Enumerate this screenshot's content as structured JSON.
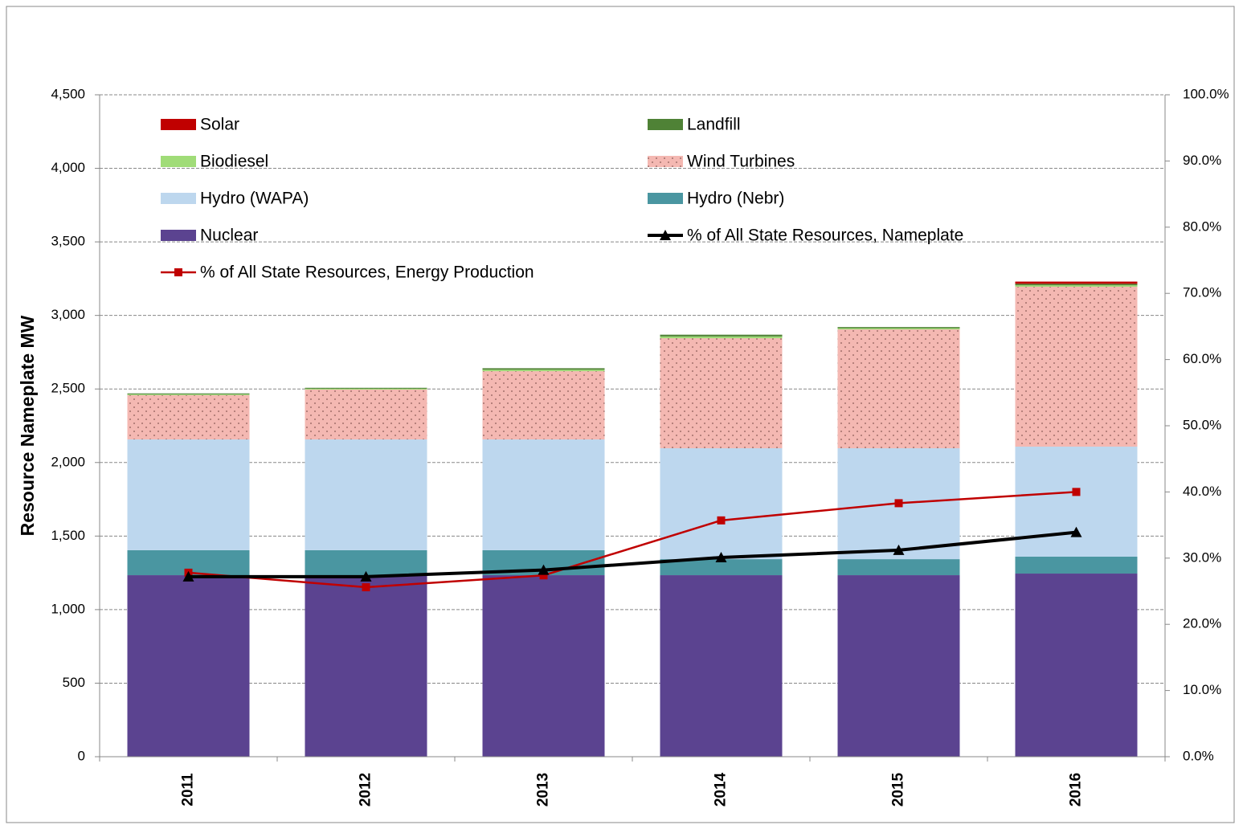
{
  "chart_data": {
    "type": "bar",
    "ylabel": "Resource Nameplate MW",
    "categories": [
      "2011",
      "2012",
      "2013",
      "2014",
      "2015",
      "2016"
    ],
    "series": [
      {
        "name": "Nuclear",
        "color": "#5b4390",
        "values": [
          1234,
          1234,
          1234,
          1234,
          1234,
          1245
        ]
      },
      {
        "name": "Hydro (Nebr)",
        "color": "#4a96a1",
        "values": [
          170,
          170,
          170,
          109,
          109,
          115
        ]
      },
      {
        "name": "Hydro (WAPA)",
        "color": "#bdd7ee",
        "values": [
          753,
          753,
          753,
          754,
          754,
          748
        ]
      },
      {
        "name": "Wind Turbines",
        "color": "#f4b8b2",
        "pattern": "dots",
        "values": [
          301,
          339,
          464,
          748,
          808,
          1087
        ]
      },
      {
        "name": "Biodiesel",
        "color": "#a0dc78",
        "values": [
          6,
          6,
          10,
          12,
          8,
          10
        ]
      },
      {
        "name": "Landfill",
        "color": "#4f8236",
        "values": [
          6,
          6,
          10,
          12,
          8,
          10
        ]
      },
      {
        "name": "Solar",
        "color": "#c00000",
        "values": [
          0,
          0,
          0,
          0,
          0,
          15
        ]
      },
      {
        "name": "% of All State Resources, Nameplate",
        "type": "line",
        "axis": "y2",
        "marker": "triangle",
        "color": "#000000",
        "values": [
          27.2,
          27.2,
          28.2,
          30.1,
          31.2,
          33.9
        ]
      },
      {
        "name": "% of All State Resources, Energy Production",
        "type": "line",
        "axis": "y2",
        "marker": "square",
        "color": "#c00000",
        "values": [
          27.8,
          25.6,
          27.4,
          35.7,
          38.3,
          40.0
        ]
      }
    ],
    "ylim": [
      0,
      4500
    ],
    "yticks": [
      0,
      500,
      {
        "value": 1000,
        "label": "1,000"
      },
      {
        "value": 1500,
        "label": "1,500"
      },
      {
        "value": 2000,
        "label": "2,000"
      },
      {
        "value": 2500,
        "label": "2,500"
      },
      {
        "value": 3000,
        "label": "3,000"
      },
      {
        "value": 3500,
        "label": "3,500"
      },
      {
        "value": 4000,
        "label": "4,000"
      },
      {
        "value": 4500,
        "label": "4,500"
      }
    ],
    "y2lim": [
      0,
      100
    ],
    "y2ticks": [
      {
        "value": 0,
        "label": "0.0%"
      },
      {
        "value": 10,
        "label": "10.0%"
      },
      {
        "value": 20,
        "label": "20.0%"
      },
      {
        "value": 30,
        "label": "30.0%"
      },
      {
        "value": 40,
        "label": "40.0%"
      },
      {
        "value": 50,
        "label": "50.0%"
      },
      {
        "value": 60,
        "label": "60.0%"
      },
      {
        "value": 70,
        "label": "70.0%"
      },
      {
        "value": 80,
        "label": "80.0%"
      },
      {
        "value": 90,
        "label": "90.0%"
      },
      {
        "value": 100,
        "label": "100.0%"
      }
    ],
    "grid": true,
    "legend": "top"
  }
}
